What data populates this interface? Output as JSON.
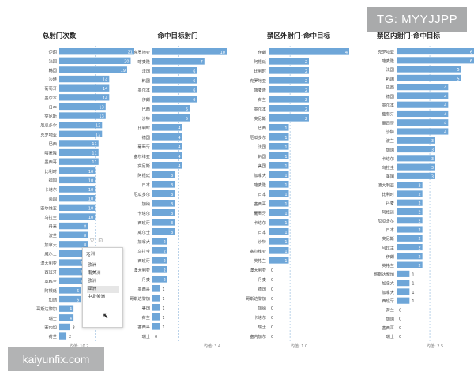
{
  "chart_data": [
    {
      "type": "bar",
      "title": "总射门次数",
      "categories": [
        "伊朗",
        "法国",
        "韩国",
        "沙特",
        "葡萄牙",
        "墨尔本",
        "日本",
        "突尼斯",
        "厄瓜多尔",
        "克罗地亚",
        "巴西",
        "喀麦隆",
        "墨西哥",
        "比利时",
        "德国",
        "卡塔尔",
        "美国",
        "塞尔维亚",
        "乌拉圭",
        "丹麦",
        "波兰",
        "加拿大",
        "威尔士",
        "澳大利亚",
        "西班牙",
        "英格兰",
        "阿根廷",
        "加纳",
        "哥斯达黎加",
        "瑞士",
        "塞内加",
        "荷兰"
      ],
      "values": [
        21,
        20,
        19,
        14,
        14,
        14,
        13,
        13,
        12,
        12,
        11,
        11,
        11,
        10,
        10,
        10,
        10,
        10,
        10,
        8,
        8,
        8,
        8,
        7,
        7,
        7,
        6,
        6,
        4,
        4,
        3,
        2
      ],
      "avg_label": "均值: 10.2"
    },
    {
      "type": "bar",
      "title": "命中目标射门",
      "categories": [
        "克罗地亚",
        "喀麦隆",
        "法国",
        "韩国",
        "墨尔本",
        "伊朗",
        "巴西",
        "沙特",
        "比利时",
        "德国",
        "葡萄牙",
        "塞尔维亚",
        "突尼斯",
        "阿根廷",
        "日本",
        "厄瓜多尔",
        "加纳",
        "卡塔尔",
        "西班牙",
        "威尔士",
        "加拿大",
        "乌拉圭",
        "西班牙",
        "澳大利亚",
        "丹麦",
        "墨西哥",
        "哥斯达黎加",
        "美国",
        "荷兰",
        "塞西哥",
        "瑞士"
      ],
      "values": [
        10,
        7,
        6,
        6,
        6,
        6,
        5,
        5,
        4,
        4,
        4,
        4,
        4,
        3,
        3,
        3,
        3,
        3,
        3,
        3,
        2,
        2,
        2,
        2,
        2,
        1,
        1,
        1,
        1,
        1,
        0
      ],
      "avg_label": "均值: 3.4"
    },
    {
      "type": "bar",
      "title": "禁区外射门-命中目标",
      "categories": [
        "伊朗",
        "阿根廷",
        "比利时",
        "克罗地亚",
        "喀麦隆",
        "荷兰",
        "墨尔本",
        "突尼斯",
        "巴西",
        "厄瓜多尔",
        "法国",
        "韩国",
        "美国",
        "加拿大",
        "喀麦隆",
        "日本",
        "塞西哥",
        "葡萄牙",
        "卡塔尔",
        "日本",
        "沙特",
        "塞尔维亚",
        "英格兰",
        "澳大利亚",
        "丹麦",
        "德国",
        "哥斯达黎加",
        "加纳",
        "卡塔尔",
        "瑞士",
        "塞内加尔"
      ],
      "values": [
        4,
        2,
        2,
        2,
        2,
        2,
        2,
        2,
        1,
        1,
        1,
        1,
        1,
        1,
        1,
        1,
        1,
        1,
        1,
        1,
        1,
        1,
        1,
        0,
        0,
        0,
        0,
        0,
        0,
        0,
        0
      ],
      "avg_label": "均值: 1.0"
    },
    {
      "type": "bar",
      "title": "禁区内射门-命中目标",
      "categories": [
        "克罗地亚",
        "喀麦隆",
        "法国",
        "韩国",
        "巴西",
        "德国",
        "墨尔本",
        "葡萄牙",
        "墨西哥",
        "沙特",
        "波兰",
        "加纳",
        "卡塔尔",
        "乌拉圭",
        "美国",
        "澳大利亚",
        "比利时",
        "丹麦",
        "阿根廷",
        "厄瓜多尔",
        "日本",
        "突尼斯",
        "乌拉圭",
        "伊朗",
        "英格兰",
        "哥斯达黎加",
        "加拿大",
        "加拿大",
        "西班牙",
        "荷兰",
        "加纳",
        "塞西哥",
        "瑞士"
      ],
      "values": [
        6,
        6,
        5,
        5,
        4,
        4,
        4,
        4,
        4,
        4,
        3,
        3,
        3,
        3,
        3,
        2,
        2,
        2,
        2,
        2,
        2,
        2,
        2,
        2,
        2,
        1,
        1,
        1,
        1,
        0,
        0,
        0,
        0
      ],
      "avg_label": "均值: 2.5"
    }
  ],
  "watermarks": {
    "top": "TG: MYYJJPP",
    "bottom": "kaiyunfix.com"
  },
  "filter_popup": {
    "title": "大洲",
    "items": [
      "欧洲",
      "南美洲",
      "欧洲",
      "亚洲",
      "中北美洲"
    ],
    "selected_index": 3
  },
  "colors": {
    "bar": "#6ea6d8",
    "avg_line": "#a9c8e4",
    "text": "#444444"
  }
}
